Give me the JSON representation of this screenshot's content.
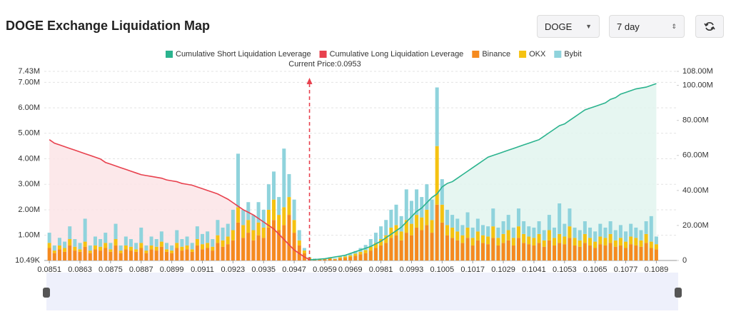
{
  "header": {
    "title": "DOGE Exchange Liquidation Map",
    "coin": "DOGE",
    "period": "7 day"
  },
  "chart_data": {
    "type": "bar",
    "annotation": "Current Price:0.0953",
    "current_price": 0.0953,
    "xlim": [
      0.0849,
      0.1097
    ],
    "xticks": [
      0.0851,
      0.0863,
      0.0875,
      0.0887,
      0.0899,
      0.0911,
      0.0923,
      0.0935,
      0.0947,
      0.0959,
      0.0969,
      0.0981,
      0.0993,
      0.1005,
      0.1017,
      0.1029,
      0.1041,
      0.1053,
      0.1065,
      0.1077,
      0.1089
    ],
    "ylim": [
      10490,
      7430000
    ],
    "yticks": [
      {
        "value": 10490,
        "label": "10.49K"
      },
      {
        "value": 1000000,
        "label": "1.00M"
      },
      {
        "value": 2000000,
        "label": "2.00M"
      },
      {
        "value": 3000000,
        "label": "3.00M"
      },
      {
        "value": 4000000,
        "label": "4.00M"
      },
      {
        "value": 5000000,
        "label": "5.00M"
      },
      {
        "value": 6000000,
        "label": "6.00M"
      },
      {
        "value": 7000000,
        "label": "7.00M"
      },
      {
        "value": 7430000,
        "label": "7.43M"
      }
    ],
    "y2lim": [
      0,
      108000000
    ],
    "y2ticks": [
      0,
      {
        "value": 20000000,
        "label": "20.00M"
      },
      {
        "value": 40000000,
        "label": "40.00M"
      },
      {
        "value": 60000000,
        "label": "60.00M"
      },
      {
        "value": 80000000,
        "label": "80.00M"
      },
      {
        "value": 100000000,
        "label": "100.00M"
      },
      {
        "value": 108000000,
        "label": "108.00M"
      }
    ],
    "grid": true,
    "x": [
      0.0851,
      0.0853,
      0.0855,
      0.0857,
      0.0859,
      0.0861,
      0.0863,
      0.0865,
      0.0867,
      0.0869,
      0.0871,
      0.0873,
      0.0875,
      0.0877,
      0.0879,
      0.0881,
      0.0883,
      0.0885,
      0.0887,
      0.0889,
      0.0891,
      0.0893,
      0.0895,
      0.0897,
      0.0899,
      0.0901,
      0.0903,
      0.0905,
      0.0907,
      0.0909,
      0.0911,
      0.0913,
      0.0915,
      0.0917,
      0.0919,
      0.0921,
      0.0923,
      0.0925,
      0.0927,
      0.0929,
      0.0931,
      0.0933,
      0.0935,
      0.0937,
      0.0939,
      0.0941,
      0.0943,
      0.0945,
      0.0947,
      0.0949,
      0.0951,
      0.0953,
      0.0955,
      0.0957,
      0.0959,
      0.0961,
      0.0963,
      0.0965,
      0.0967,
      0.0969,
      0.0971,
      0.0973,
      0.0975,
      0.0977,
      0.0979,
      0.0981,
      0.0983,
      0.0985,
      0.0987,
      0.0989,
      0.0991,
      0.0993,
      0.0995,
      0.0997,
      0.0999,
      0.1001,
      0.1003,
      0.1005,
      0.1007,
      0.1009,
      0.1011,
      0.1013,
      0.1015,
      0.1017,
      0.1019,
      0.1021,
      0.1023,
      0.1025,
      0.1027,
      0.1029,
      0.1031,
      0.1033,
      0.1035,
      0.1037,
      0.1039,
      0.1041,
      0.1043,
      0.1045,
      0.1047,
      0.1049,
      0.1051,
      0.1053,
      0.1055,
      0.1057,
      0.1059,
      0.1061,
      0.1063,
      0.1065,
      0.1067,
      0.1069,
      0.1071,
      0.1073,
      0.1075,
      0.1077,
      0.1079,
      0.1081,
      0.1083,
      0.1085,
      0.1087,
      0.1089
    ],
    "series": [
      {
        "name": "Cumulative Short Liquidation Leverage",
        "type": "line",
        "axis": "y2",
        "color": "#2bb38e",
        "fill": "#e2f4ee",
        "values": [
          null,
          null,
          null,
          null,
          null,
          null,
          null,
          null,
          null,
          null,
          null,
          null,
          null,
          null,
          null,
          null,
          null,
          null,
          null,
          null,
          null,
          null,
          null,
          null,
          null,
          null,
          null,
          null,
          null,
          null,
          null,
          null,
          null,
          null,
          null,
          null,
          null,
          null,
          null,
          null,
          null,
          null,
          null,
          null,
          null,
          null,
          null,
          null,
          null,
          null,
          null,
          500000,
          500000,
          800000,
          1000000,
          1500000,
          2000000,
          2500000,
          3000000,
          4000000,
          5000000,
          6000000,
          7000000,
          8000000,
          9500000,
          11000000,
          13000000,
          15000000,
          17000000,
          19000000,
          22000000,
          25000000,
          28000000,
          30000000,
          33000000,
          36000000,
          38000000,
          42000000,
          44000000,
          45000000,
          47000000,
          49000000,
          51000000,
          53000000,
          55000000,
          57000000,
          59000000,
          60000000,
          61000000,
          62000000,
          63000000,
          64000000,
          65000000,
          66000000,
          67000000,
          68000000,
          69000000,
          71000000,
          73000000,
          75000000,
          77000000,
          78000000,
          80000000,
          82000000,
          84000000,
          86000000,
          87000000,
          88000000,
          89000000,
          90000000,
          92000000,
          93000000,
          95000000,
          96000000,
          97000000,
          98000000,
          98500000,
          99000000,
          100000000,
          101000000
        ]
      },
      {
        "name": "Cumulative Long Liquidation Leverage",
        "type": "line",
        "axis": "y2",
        "color": "#e8414e",
        "fill": "#fbe4e6",
        "values": [
          69000000,
          67000000,
          66000000,
          65000000,
          64000000,
          63000000,
          62000000,
          61000000,
          60000000,
          59000000,
          58000000,
          56000000,
          55000000,
          54000000,
          53000000,
          52000000,
          51000000,
          50000000,
          49000000,
          48500000,
          48000000,
          47500000,
          47000000,
          46000000,
          45500000,
          45000000,
          44000000,
          43500000,
          43000000,
          42000000,
          41000000,
          40000000,
          39000000,
          38000000,
          36500000,
          35000000,
          33000000,
          31000000,
          29000000,
          27500000,
          26000000,
          24000000,
          22000000,
          20000000,
          18000000,
          15000000,
          12000000,
          9000000,
          6000000,
          4000000,
          2000000,
          500000,
          null,
          null,
          null,
          null,
          null,
          null,
          null,
          null,
          null,
          null,
          null,
          null,
          null,
          null,
          null,
          null,
          null,
          null,
          null,
          null,
          null,
          null,
          null,
          null,
          null,
          null,
          null,
          null,
          null,
          null,
          null,
          null,
          null,
          null,
          null,
          null,
          null,
          null,
          null,
          null,
          null,
          null,
          null,
          null,
          null,
          null,
          null,
          null,
          null,
          null,
          null,
          null,
          null,
          null,
          null,
          null,
          null,
          null,
          null,
          null,
          null,
          null,
          null,
          null,
          null,
          null,
          null,
          null
        ]
      },
      {
        "name": "Binance",
        "type": "bar",
        "color": "#f58a1f",
        "values": [
          500000,
          300000,
          450000,
          350000,
          600000,
          400000,
          350000,
          550000,
          300000,
          450000,
          400000,
          500000,
          350000,
          600000,
          300000,
          450000,
          400000,
          350000,
          500000,
          300000,
          450000,
          400000,
          550000,
          350000,
          300000,
          500000,
          400000,
          450000,
          350000,
          600000,
          450000,
          500000,
          400000,
          700000,
          550000,
          650000,
          800000,
          1500000,
          900000,
          1100000,
          800000,
          1000000,
          900000,
          1300000,
          1600000,
          1200000,
          1400000,
          1800000,
          1100000,
          600000,
          300000,
          100000,
          50000,
          40000,
          60000,
          80000,
          50000,
          100000,
          120000,
          150000,
          200000,
          250000,
          300000,
          400000,
          500000,
          600000,
          700000,
          900000,
          1000000,
          800000,
          1100000,
          1000000,
          1300000,
          1200000,
          1400000,
          1100000,
          2200000,
          1500000,
          1000000,
          900000,
          800000,
          700000,
          900000,
          600000,
          800000,
          700000,
          650000,
          900000,
          600000,
          700000,
          800000,
          600000,
          900000,
          700000,
          650000,
          600000,
          700000,
          550000,
          800000,
          600000,
          700000,
          650000,
          900000,
          600000,
          550000,
          700000,
          600000,
          500000,
          650000,
          600000,
          700000,
          550000,
          600000,
          500000,
          650000,
          600000,
          550000,
          700000,
          500000,
          450000
        ]
      },
      {
        "name": "OKX",
        "type": "bar",
        "color": "#f5c211",
        "values": [
          200000,
          100000,
          150000,
          150000,
          250000,
          150000,
          100000,
          200000,
          100000,
          150000,
          150000,
          200000,
          100000,
          250000,
          100000,
          150000,
          150000,
          100000,
          200000,
          100000,
          150000,
          150000,
          200000,
          100000,
          100000,
          200000,
          150000,
          150000,
          100000,
          250000,
          200000,
          200000,
          150000,
          300000,
          250000,
          300000,
          400000,
          600000,
          500000,
          500000,
          400000,
          500000,
          400000,
          700000,
          800000,
          600000,
          700000,
          700000,
          500000,
          200000,
          100000,
          30000,
          20000,
          20000,
          20000,
          30000,
          20000,
          40000,
          50000,
          60000,
          80000,
          100000,
          120000,
          150000,
          200000,
          250000,
          300000,
          400000,
          400000,
          350000,
          500000,
          450000,
          500000,
          500000,
          600000,
          500000,
          2300000,
          700000,
          400000,
          400000,
          350000,
          300000,
          400000,
          300000,
          350000,
          300000,
          300000,
          450000,
          300000,
          350000,
          400000,
          300000,
          450000,
          350000,
          300000,
          300000,
          350000,
          250000,
          400000,
          300000,
          350000,
          300000,
          450000,
          300000,
          250000,
          350000,
          300000,
          250000,
          300000,
          300000,
          350000,
          250000,
          300000,
          250000,
          300000,
          300000,
          250000,
          350000,
          250000,
          200000
        ]
      },
      {
        "name": "Bybit",
        "type": "bar",
        "color": "#8fd3dc",
        "values": [
          400000,
          200000,
          300000,
          250000,
          500000,
          300000,
          250000,
          900000,
          200000,
          350000,
          300000,
          400000,
          250000,
          600000,
          200000,
          350000,
          300000,
          250000,
          600000,
          200000,
          350000,
          300000,
          400000,
          250000,
          200000,
          500000,
          300000,
          350000,
          250000,
          500000,
          400000,
          450000,
          300000,
          600000,
          500000,
          500000,
          800000,
          2100000,
          600000,
          700000,
          600000,
          800000,
          700000,
          1000000,
          1100000,
          700000,
          2300000,
          900000,
          800000,
          400000,
          100000,
          20000,
          20000,
          10000,
          20000,
          30000,
          20000,
          40000,
          50000,
          60000,
          100000,
          150000,
          200000,
          300000,
          400000,
          500000,
          600000,
          700000,
          800000,
          600000,
          1200000,
          900000,
          1000000,
          800000,
          1000000,
          800000,
          2300000,
          1000000,
          600000,
          500000,
          500000,
          400000,
          600000,
          400000,
          500000,
          400000,
          400000,
          700000,
          400000,
          500000,
          600000,
          400000,
          700000,
          500000,
          400000,
          400000,
          500000,
          400000,
          600000,
          400000,
          1200000,
          500000,
          700000,
          400000,
          400000,
          500000,
          400000,
          400000,
          500000,
          400000,
          500000,
          400000,
          500000,
          400000,
          500000,
          400000,
          400000,
          500000,
          1000000,
          300000
        ]
      }
    ]
  }
}
